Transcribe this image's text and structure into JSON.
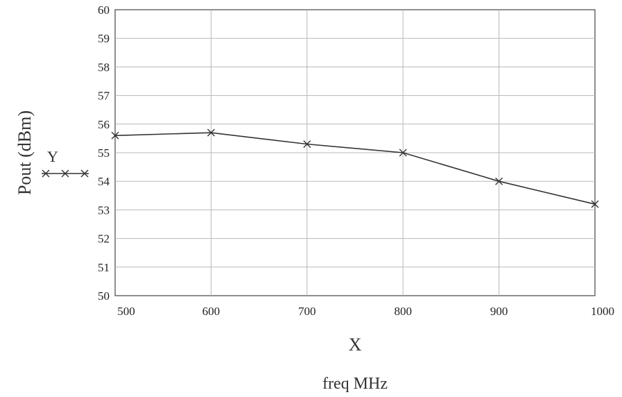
{
  "chart_data": {
    "type": "line",
    "x": [
      500,
      600,
      700,
      800,
      900,
      1000
    ],
    "series": [
      {
        "name": "Y",
        "values": [
          55.6,
          55.7,
          55.3,
          55.0,
          54.0,
          53.2
        ]
      }
    ],
    "xlabel": "X",
    "xsublabel": "freq MHz",
    "ylabel": "Pout (dBm)",
    "xlim": [
      500,
      1000
    ],
    "ylim": [
      50,
      60
    ],
    "xticks": [
      500,
      600,
      700,
      800,
      900,
      1000
    ],
    "yticks": [
      50,
      51,
      52,
      53,
      54,
      55,
      56,
      57,
      58,
      59,
      60
    ],
    "grid": true,
    "legend_position": "left",
    "marker": "x",
    "line_color": "#333333",
    "grid_color": "#b8b8b8"
  }
}
